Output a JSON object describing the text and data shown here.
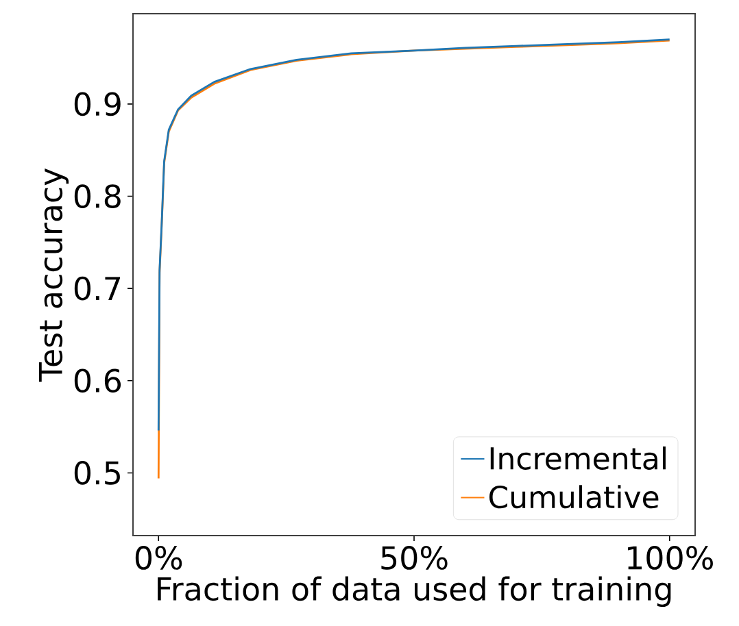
{
  "chart_data": {
    "type": "line",
    "xlabel": "Fraction of data used for training",
    "ylabel": "Test accuracy",
    "xlim": [
      -5,
      105
    ],
    "ylim": [
      0.432,
      0.998
    ],
    "xticks": [
      {
        "value": 0,
        "label": "0%"
      },
      {
        "value": 50,
        "label": "50%"
      },
      {
        "value": 100,
        "label": "100%"
      }
    ],
    "yticks": [
      0.5,
      0.6,
      0.7,
      0.8,
      0.9
    ],
    "legend": "bottom right",
    "grid": false,
    "marker": "none",
    "line_style": "solid",
    "series": [
      {
        "name": "Incremental",
        "color": "#1f77b4",
        "x": [
          0,
          0.2,
          0.6,
          1.1,
          2.0,
          3.8,
          6.4,
          10.9,
          18,
          27,
          37.7,
          50,
          60,
          70,
          80,
          90,
          100
        ],
        "values": [
          0.546,
          0.72,
          0.768,
          0.838,
          0.872,
          0.894,
          0.909,
          0.924,
          0.938,
          0.948,
          0.955,
          0.958,
          0.961,
          0.963,
          0.965,
          0.967,
          0.97
        ]
      },
      {
        "name": "Cumulative",
        "color": "#ff7f0e",
        "x": [
          0,
          0.2,
          0.6,
          1.1,
          2.0,
          3.8,
          6.4,
          10.9,
          18,
          27,
          37.7,
          50,
          60,
          70,
          80,
          90,
          100
        ],
        "values": [
          0.494,
          0.717,
          0.766,
          0.836,
          0.87,
          0.893,
          0.907,
          0.922,
          0.937,
          0.947,
          0.954,
          0.958,
          0.96,
          0.962,
          0.964,
          0.966,
          0.969
        ]
      }
    ]
  }
}
